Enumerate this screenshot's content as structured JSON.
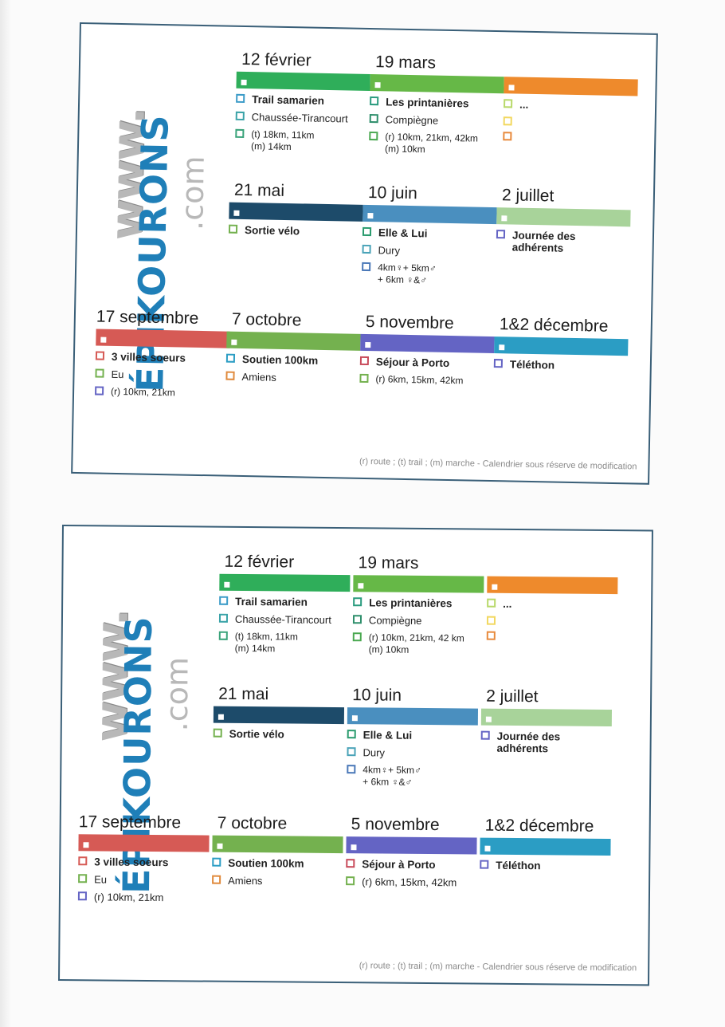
{
  "logo": {
    "www": "www.",
    "name": "ÉPIKOURONS",
    "com": ".com"
  },
  "legend": "(r) route ; (t) trail ; (m) marche - Calendrier sous réserve de modification",
  "colors": {
    "green": "#2fae5a",
    "teal": "#2a9b7e",
    "orange": "#ee8a2c",
    "navy": "#1d4b6a",
    "steel": "#4a8fbf",
    "lightgreen": "#a8d39a",
    "red": "#d65a55",
    "olive": "#74b14f",
    "purple": "#6464c4",
    "cyan": "#2b9dc4",
    "lime": "#b8d96a",
    "yellow": "#f2e080"
  },
  "cards": [
    {
      "events": [
        {
          "date": "12  février",
          "bar": "#2fae5a",
          "items": [
            {
              "text": "Trail samarien",
              "box": "#3b9bc8",
              "bold": true
            },
            {
              "text": "Chaussée-Tirancourt",
              "box": "#3aa3a8"
            },
            {
              "text": "(t) 18km, 11km\n(m) 14km",
              "box": "#3aa37a",
              "sub": true
            }
          ]
        },
        {
          "date": "19 mars",
          "bar": "#66b847",
          "items": [
            {
              "text": "Les printanières",
              "box": "#2a9b7e",
              "bold": true
            },
            {
              "text": "Compiègne",
              "box": "#2f8f6c"
            },
            {
              "text": "(r) 10km, 21km, 42km\n(m) 10km",
              "box": "#4aa850",
              "sub": true
            }
          ]
        },
        {
          "date": "",
          "bar": "#ee8a2c",
          "items": [
            {
              "text": "...",
              "box": "#b8d96a",
              "bold": true
            },
            {
              "text": "",
              "box": "#f2d860"
            },
            {
              "text": "",
              "box": "#e88a3c"
            }
          ]
        },
        {
          "date": "21 mai",
          "bar": "#1d4b6a",
          "items": [
            {
              "text": "Sortie vélo",
              "box": "#74b14f",
              "bold": true
            }
          ]
        },
        {
          "date": "10 juin",
          "bar": "#4a8fbf",
          "items": [
            {
              "text": "Elle & Lui",
              "box": "#2a9b6e",
              "bold": true
            },
            {
              "text": "Dury",
              "box": "#4aa3b8"
            },
            {
              "text": "4km♀+ 5km♂\n+ 6km ♀&♂",
              "box": "#4a78b8",
              "sub": true
            }
          ]
        },
        {
          "date": "2 juillet",
          "bar": "#a8d39a",
          "items": [
            {
              "text": "Journée des\nadhérents",
              "box": "#6464c4",
              "bold": true
            }
          ]
        },
        {
          "date": "17 septembre",
          "bar": "#d65a55",
          "items": [
            {
              "text": "3 villes soeurs",
              "box": "#d65a55",
              "bold": true
            },
            {
              "text": "Eu",
              "box": "#74b14f"
            },
            {
              "text": "(r) 10km, 21km",
              "box": "#6464c4",
              "sub": true
            }
          ]
        },
        {
          "date": "7 octobre",
          "bar": "#74b14f",
          "items": [
            {
              "text": "Soutien 100km",
              "box": "#2b9dc4",
              "bold": true
            },
            {
              "text": "Amiens",
              "box": "#e08a3c"
            }
          ]
        },
        {
          "date": "5 novembre",
          "bar": "#6464c4",
          "items": [
            {
              "text": "Séjour à Porto",
              "box": "#c84a5a",
              "bold": true
            },
            {
              "text": "(r) 6km, 15km, 42km",
              "box": "#74b14f",
              "sub": true
            }
          ]
        },
        {
          "date": "1&2 décembre",
          "bar": "#2b9dc4",
          "items": [
            {
              "text": "Téléthon",
              "box": "#6464c4",
              "bold": true
            }
          ]
        }
      ]
    },
    {
      "events": [
        {
          "date": "12  février",
          "bar": "#2fae5a",
          "items": [
            {
              "text": "Trail samarien",
              "box": "#3b9bc8",
              "bold": true
            },
            {
              "text": "Chaussée-Tirancourt",
              "box": "#3aa3a8"
            },
            {
              "text": "(t) 18km, 11km\n(m) 14km",
              "box": "#3aa37a",
              "sub": true
            }
          ]
        },
        {
          "date": "19 mars",
          "bar": "#66b847",
          "items": [
            {
              "text": "Les printanières",
              "box": "#2a9b7e",
              "bold": true
            },
            {
              "text": "Compiègne",
              "box": "#2f8f6c"
            },
            {
              "text": "(r) 10km, 21km, 42 km\n(m) 10km",
              "box": "#4aa850",
              "sub": true
            }
          ]
        },
        {
          "date": "",
          "bar": "#ee8a2c",
          "items": [
            {
              "text": "...",
              "box": "#b8d96a",
              "bold": true
            },
            {
              "text": "",
              "box": "#f2d860"
            },
            {
              "text": "",
              "box": "#e88a3c"
            }
          ]
        },
        {
          "date": "21 mai",
          "bar": "#1d4b6a",
          "items": [
            {
              "text": "Sortie vélo",
              "box": "#74b14f",
              "bold": true
            }
          ]
        },
        {
          "date": "10 juin",
          "bar": "#4a8fbf",
          "items": [
            {
              "text": "Elle & Lui",
              "box": "#2a9b6e",
              "bold": true
            },
            {
              "text": "Dury",
              "box": "#4aa3b8"
            },
            {
              "text": "4km♀+ 5km♂\n+ 6km ♀&♂",
              "box": "#4a78b8",
              "sub": true
            }
          ]
        },
        {
          "date": "2 juillet",
          "bar": "#a8d39a",
          "items": [
            {
              "text": "Journée des\nadhérents",
              "box": "#6464c4",
              "bold": true
            }
          ]
        },
        {
          "date": "17 septembre",
          "bar": "#d65a55",
          "items": [
            {
              "text": "3 villes soeurs",
              "box": "#d65a55",
              "bold": true
            },
            {
              "text": "Eu",
              "box": "#74b14f"
            },
            {
              "text": "(r) 10km, 21km",
              "box": "#6464c4"
            }
          ]
        },
        {
          "date": "7 octobre",
          "bar": "#74b14f",
          "items": [
            {
              "text": "Soutien 100km",
              "box": "#2b9dc4",
              "bold": true
            },
            {
              "text": "Amiens",
              "box": "#e08a3c"
            }
          ]
        },
        {
          "date": "5 novembre",
          "bar": "#6464c4",
          "items": [
            {
              "text": "Séjour à Porto",
              "box": "#c84a5a",
              "bold": true
            },
            {
              "text": "(r) 6km, 15km, 42km",
              "box": "#74b14f"
            }
          ]
        },
        {
          "date": "1&2 décembre",
          "bar": "#2b9dc4",
          "items": [
            {
              "text": "Téléthon",
              "box": "#6464c4",
              "bold": true
            }
          ]
        }
      ]
    }
  ]
}
